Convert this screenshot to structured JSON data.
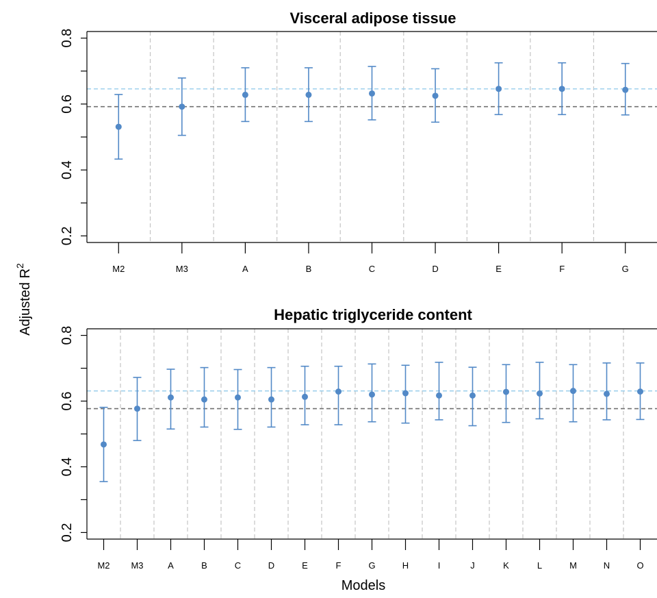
{
  "y_axis_label": "Adjusted R",
  "y_axis_label_sup": "2",
  "x_axis_label": "Models",
  "colors": {
    "point": "#5289c7",
    "ref_dark": "#707070",
    "ref_light": "#9fd0ec",
    "separator": "#c4c4c4"
  },
  "chart_data": [
    {
      "type": "scatter",
      "title": "Visceral adipose tissue",
      "categories": [
        "M2",
        "M3",
        "A",
        "B",
        "C",
        "D",
        "E",
        "F",
        "G"
      ],
      "values": [
        0.531,
        0.592,
        0.628,
        0.628,
        0.632,
        0.625,
        0.646,
        0.646,
        0.643
      ],
      "lower": [
        0.433,
        0.505,
        0.547,
        0.547,
        0.552,
        0.545,
        0.568,
        0.568,
        0.567
      ],
      "upper": [
        0.629,
        0.679,
        0.71,
        0.71,
        0.714,
        0.707,
        0.725,
        0.725,
        0.723
      ],
      "reference_lines": [
        0.592,
        0.646
      ],
      "ylim": [
        0.18,
        0.82
      ],
      "yticks": [
        0.2,
        0.4,
        0.6,
        0.8
      ],
      "ytick_labels": [
        "0.2",
        "0.4",
        "0.6",
        "0.8"
      ]
    },
    {
      "type": "scatter",
      "title": "Hepatic triglyceride content",
      "categories": [
        "M2",
        "M3",
        "A",
        "B",
        "C",
        "D",
        "E",
        "F",
        "G",
        "H",
        "I",
        "J",
        "K",
        "L",
        "M",
        "N",
        "O"
      ],
      "values": [
        0.468,
        0.577,
        0.611,
        0.605,
        0.611,
        0.605,
        0.613,
        0.629,
        0.62,
        0.624,
        0.617,
        0.617,
        0.628,
        0.623,
        0.631,
        0.622,
        0.629
      ],
      "lower": [
        0.355,
        0.48,
        0.515,
        0.521,
        0.514,
        0.521,
        0.528,
        0.528,
        0.537,
        0.533,
        0.543,
        0.525,
        0.535,
        0.546,
        0.537,
        0.543,
        0.544
      ],
      "upper": [
        0.581,
        0.672,
        0.697,
        0.702,
        0.696,
        0.702,
        0.706,
        0.706,
        0.713,
        0.709,
        0.718,
        0.703,
        0.711,
        0.718,
        0.711,
        0.716,
        0.716
      ],
      "reference_lines": [
        0.577,
        0.631
      ],
      "ylim": [
        0.18,
        0.82
      ],
      "yticks": [
        0.2,
        0.4,
        0.6,
        0.8
      ],
      "ytick_labels": [
        "0.2",
        "0.4",
        "0.6",
        "0.8"
      ]
    }
  ]
}
